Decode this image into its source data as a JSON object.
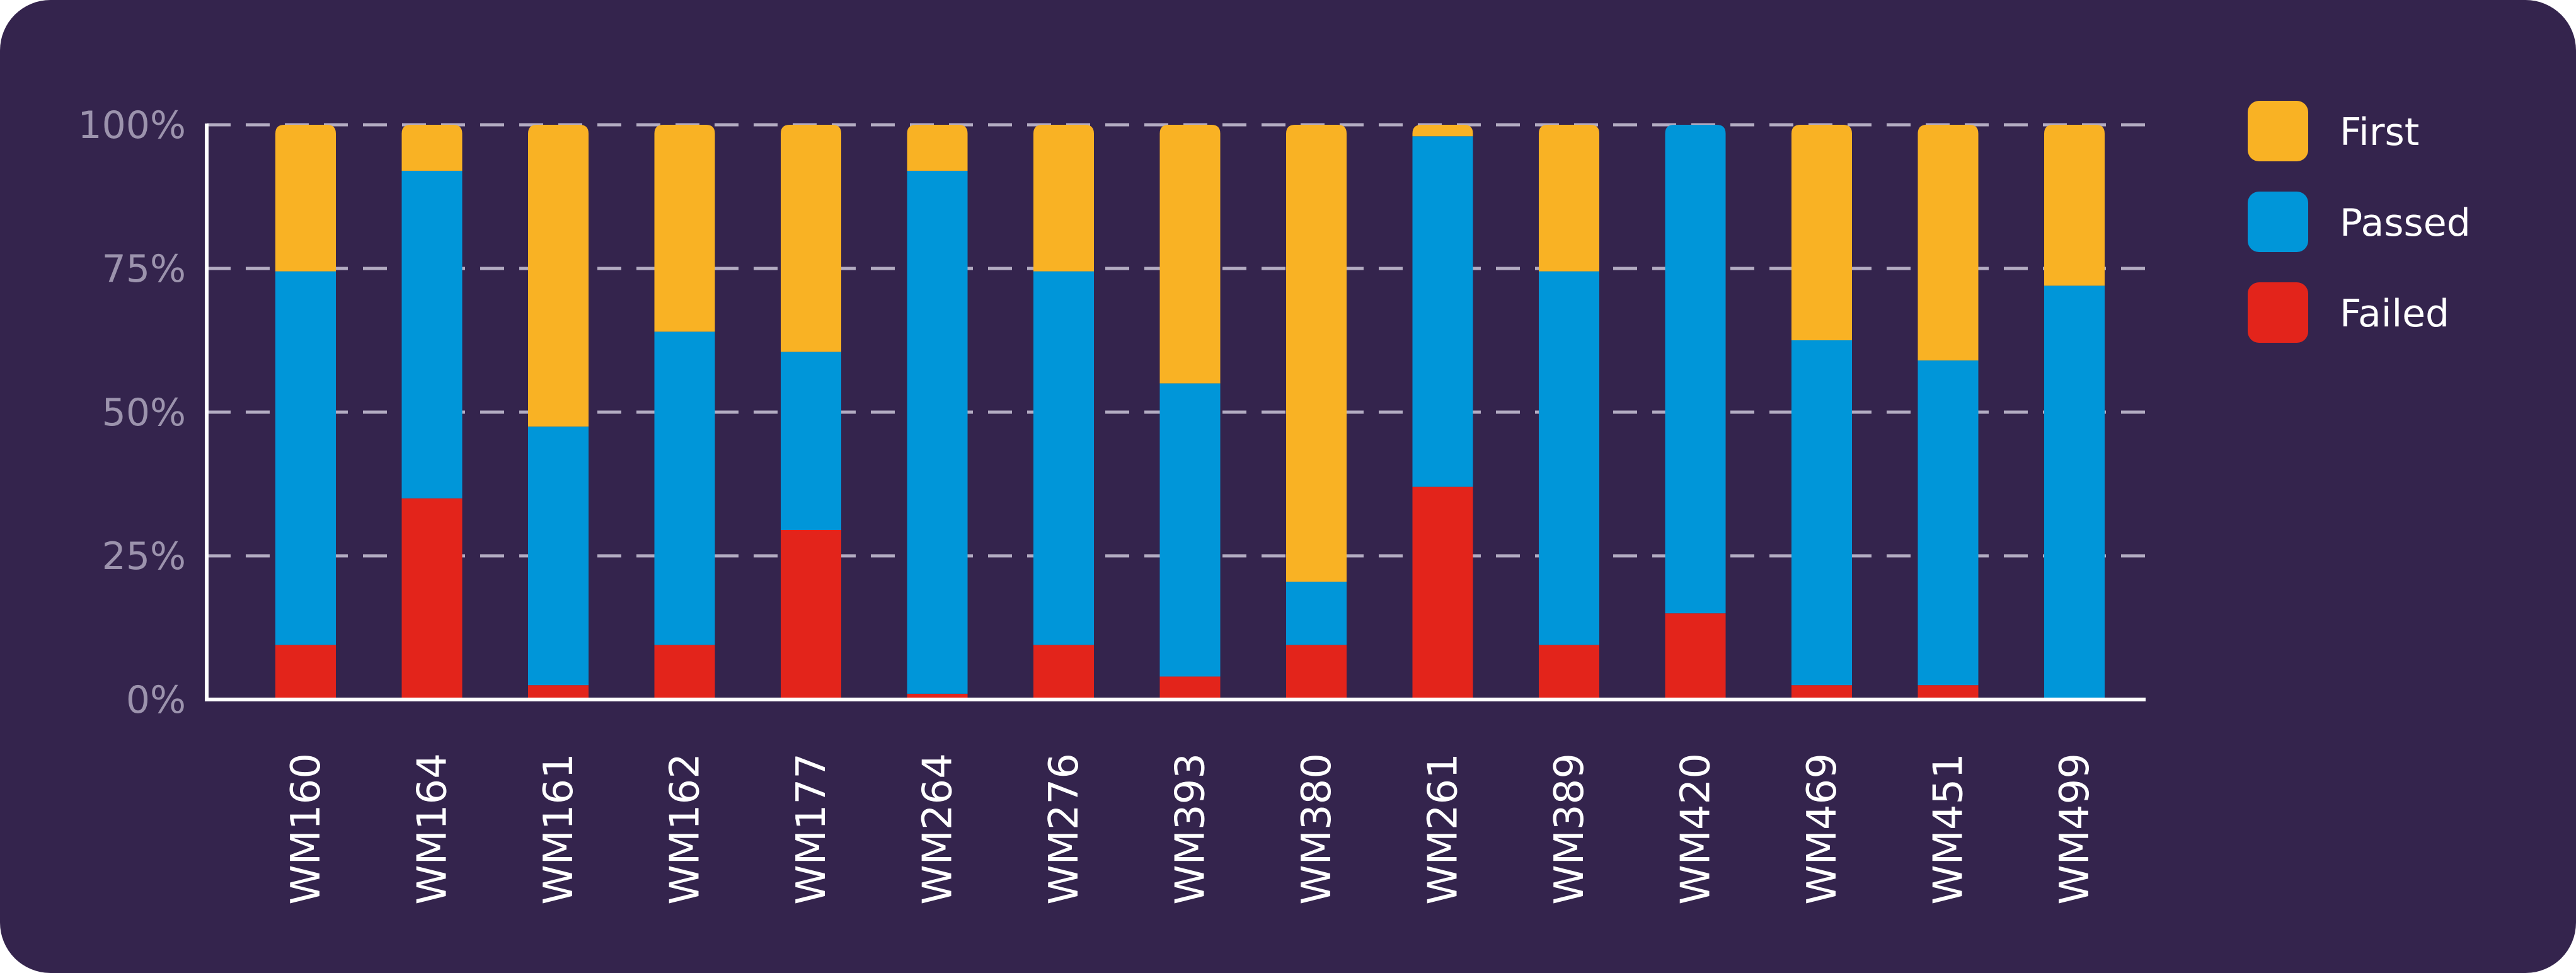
{
  "chart_data": {
    "type": "bar",
    "stacked": true,
    "categories": [
      "WM160",
      "WM164",
      "WM161",
      "WM162",
      "WM177",
      "WM264",
      "WM276",
      "WM393",
      "WM380",
      "WM261",
      "WM389",
      "WM420",
      "WM469",
      "WM451",
      "WM499"
    ],
    "series": [
      {
        "name": "Failed",
        "color": "#e3241b",
        "values": [
          9.5,
          35,
          2.5,
          9.5,
          29.5,
          1,
          9.5,
          4,
          9.5,
          37,
          9.5,
          15,
          2.5,
          2.5,
          0
        ]
      },
      {
        "name": "Passed",
        "color": "#0096d9",
        "values": [
          65,
          57,
          45,
          54.5,
          31,
          91,
          65,
          51,
          11,
          61,
          65,
          85,
          60,
          56.5,
          72
        ]
      },
      {
        "name": "First",
        "color": "#f9b224",
        "values": [
          25.5,
          8,
          52.5,
          36,
          39.5,
          8,
          25.5,
          45,
          79.5,
          2,
          25.5,
          0,
          37.5,
          41,
          28
        ]
      }
    ],
    "yticks": [
      "0%",
      "25%",
      "50%",
      "75%",
      "100%"
    ],
    "ylim": [
      0,
      100
    ],
    "grid": true,
    "legend_position": "right",
    "legend_order": [
      "First",
      "Passed",
      "Failed"
    ]
  }
}
